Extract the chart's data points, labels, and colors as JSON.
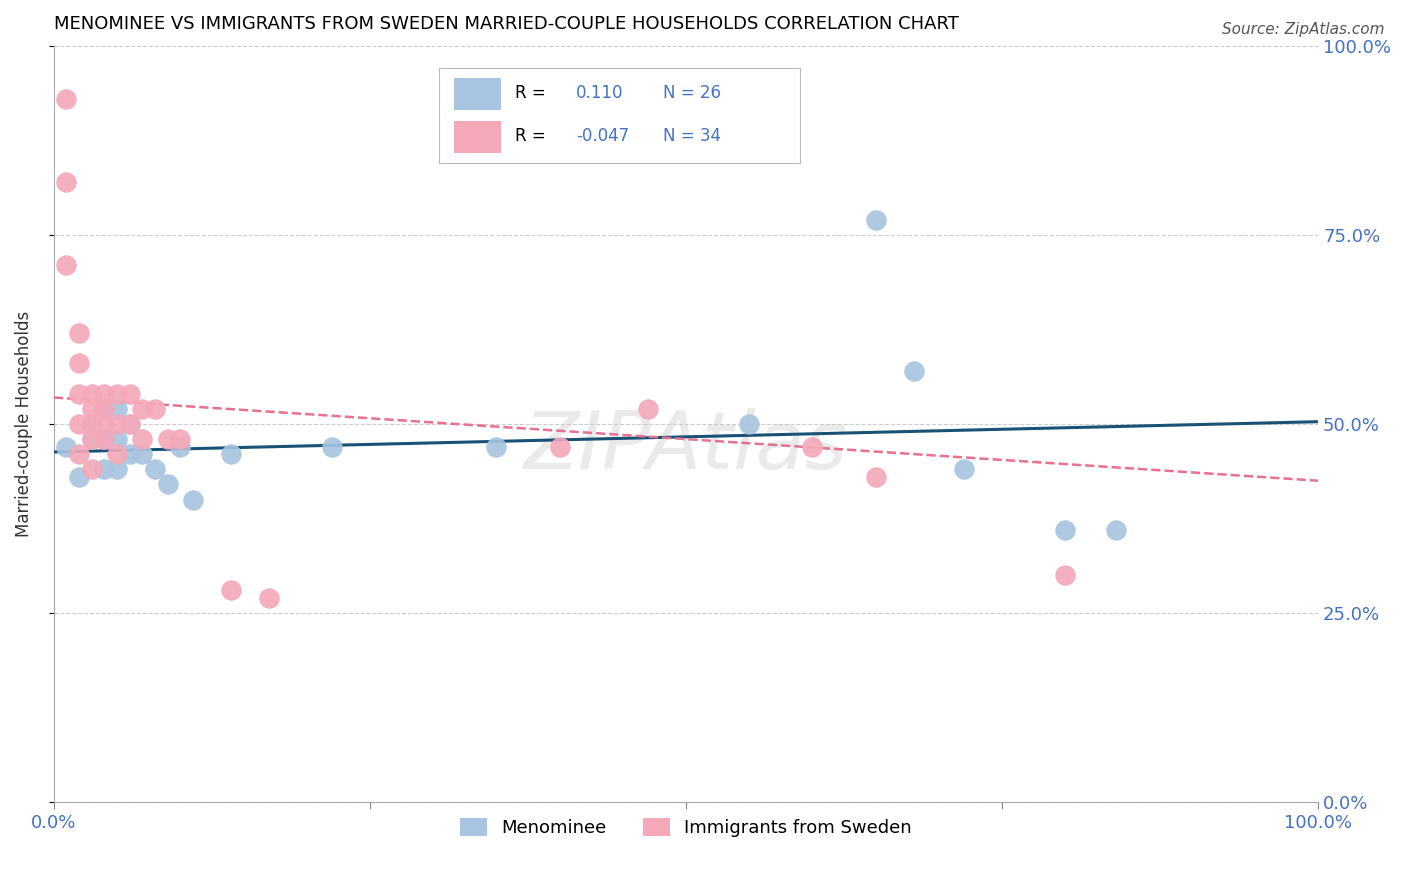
{
  "title": "MENOMINEE VS IMMIGRANTS FROM SWEDEN MARRIED-COUPLE HOUSEHOLDS CORRELATION CHART",
  "source": "Source: ZipAtlas.com",
  "ylabel": "Married-couple Households",
  "xlim": [
    0.0,
    1.0
  ],
  "ylim": [
    0.0,
    1.0
  ],
  "ytick_positions": [
    0.0,
    0.25,
    0.5,
    0.75,
    1.0
  ],
  "ytick_labels": [
    "0.0%",
    "25.0%",
    "50.0%",
    "75.0%",
    "100.0%"
  ],
  "r_blue": 0.11,
  "n_blue": 26,
  "r_pink": -0.047,
  "n_pink": 34,
  "blue_color": "#a8c4e0",
  "pink_color": "#f4a8b8",
  "line_blue_color": "#1a5276",
  "line_pink_color": "#e87090",
  "text_color": "#4472c4",
  "blue_points_x": [
    0.01,
    0.02,
    0.03,
    0.03,
    0.04,
    0.04,
    0.04,
    0.05,
    0.05,
    0.05,
    0.06,
    0.06,
    0.07,
    0.08,
    0.09,
    0.1,
    0.11,
    0.14,
    0.22,
    0.35,
    0.55,
    0.65,
    0.68,
    0.72,
    0.8,
    0.84
  ],
  "blue_points_y": [
    0.47,
    0.43,
    0.5,
    0.48,
    0.52,
    0.48,
    0.44,
    0.52,
    0.48,
    0.44,
    0.5,
    0.46,
    0.46,
    0.44,
    0.42,
    0.47,
    0.4,
    0.46,
    0.47,
    0.47,
    0.5,
    0.77,
    0.57,
    0.44,
    0.36,
    0.36
  ],
  "pink_points_x": [
    0.01,
    0.01,
    0.01,
    0.02,
    0.02,
    0.02,
    0.02,
    0.02,
    0.03,
    0.03,
    0.03,
    0.03,
    0.03,
    0.04,
    0.04,
    0.04,
    0.04,
    0.05,
    0.05,
    0.05,
    0.06,
    0.06,
    0.07,
    0.07,
    0.08,
    0.09,
    0.1,
    0.14,
    0.17,
    0.4,
    0.47,
    0.6,
    0.65,
    0.8
  ],
  "pink_points_y": [
    0.93,
    0.82,
    0.71,
    0.62,
    0.58,
    0.54,
    0.5,
    0.46,
    0.54,
    0.52,
    0.5,
    0.48,
    0.44,
    0.54,
    0.52,
    0.5,
    0.48,
    0.54,
    0.5,
    0.46,
    0.54,
    0.5,
    0.52,
    0.48,
    0.52,
    0.48,
    0.48,
    0.28,
    0.27,
    0.47,
    0.52,
    0.47,
    0.43,
    0.3
  ],
  "blue_line_x": [
    0.0,
    1.0
  ],
  "blue_line_y": [
    0.463,
    0.503
  ],
  "pink_line_x": [
    0.0,
    1.0
  ],
  "pink_line_y": [
    0.535,
    0.425
  ],
  "legend_label_blue": "Menominee",
  "legend_label_pink": "Immigrants from Sweden"
}
